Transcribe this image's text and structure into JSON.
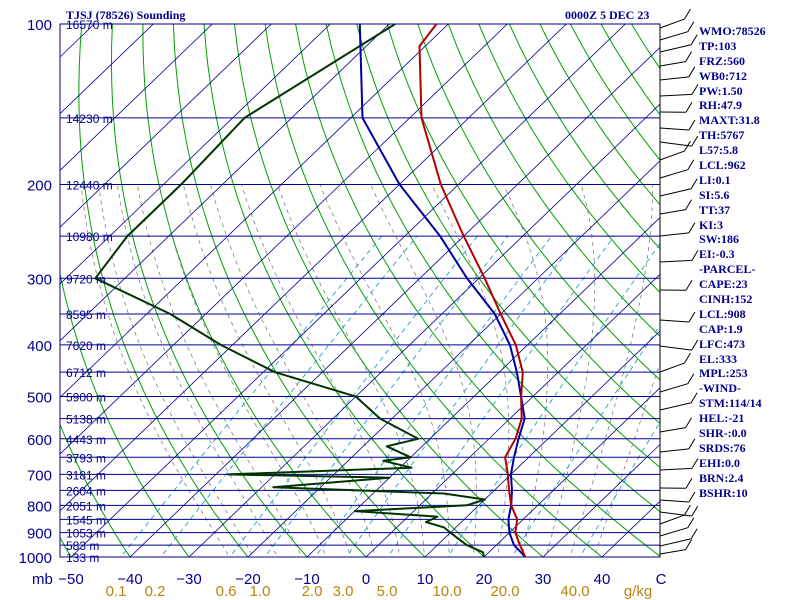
{
  "header": {
    "title": "TJSJ (78526) Sounding",
    "time": "0000Z  5 DEC 23"
  },
  "indices": [
    "WMO:78526",
    "TP:103",
    "FRZ:560",
    "WB0:712",
    "PW:1.50",
    "RH:47.9",
    "MAXT:31.8",
    "TH:5767",
    "L57:5.8",
    "LCL:962",
    "LI:0.1",
    "SI:5.6",
    "TT:37",
    "KI:3",
    "SW:186",
    "EI:-0.3",
    "-PARCEL-",
    "CAPE:23",
    "CINH:152",
    "LCL:908",
    "CAP:1.9",
    "LFC:473",
    "EL:333",
    "MPL:253",
    "-WIND-",
    "STM:114/14",
    "HEL:-21",
    "SHR-:0.0",
    "SRDS:76",
    "EHI:0.0",
    "BRN:2.4",
    "BSHR:10"
  ],
  "chart_data": {
    "type": "line",
    "subtype": "skew-T log-P",
    "colors": {
      "temperature": "#b00000",
      "dewpoint": "#003300",
      "parcel": "#0000a0",
      "isobars": "#00008b",
      "isotherms": "#00008b",
      "dry_adiabats": "#00a000",
      "moist_adiabats": "#808080",
      "mixing_ratio": "#20a0d0"
    },
    "pressure_axis": {
      "unit": "mb",
      "ticks": [
        100,
        200,
        300,
        400,
        500,
        600,
        700,
        800,
        900,
        1000
      ],
      "range": [
        100,
        1000
      ],
      "scale": "log"
    },
    "temperature_axis": {
      "ticks": [
        -50,
        -40,
        -30,
        -20,
        -10,
        0,
        10,
        20,
        30,
        40
      ],
      "range": [
        -50,
        50
      ]
    },
    "mixing_ratio_labels": [
      "0.1",
      "0.2",
      "0.6",
      "1.0",
      "2.0",
      "3.0",
      "5.0",
      "10.0",
      "20.0",
      "40.0"
    ],
    "mixing_ratio_unit": "g/kg",
    "height_labels": [
      {
        "p": 100,
        "text": "16570 m"
      },
      {
        "p": 150,
        "text": "14230 m"
      },
      {
        "p": 200,
        "text": "12440 m"
      },
      {
        "p": 250,
        "text": "10980 m"
      },
      {
        "p": 300,
        "text": "9720 m"
      },
      {
        "p": 350,
        "text": "8595 m"
      },
      {
        "p": 400,
        "text": "7620 m"
      },
      {
        "p": 450,
        "text": "6712 m"
      },
      {
        "p": 500,
        "text": "5900 m"
      },
      {
        "p": 550,
        "text": "5138 m"
      },
      {
        "p": 600,
        "text": "4443 m"
      },
      {
        "p": 650,
        "text": "3793 m"
      },
      {
        "p": 700,
        "text": "3181 m"
      },
      {
        "p": 750,
        "text": "2604 m"
      },
      {
        "p": 800,
        "text": "2051 m"
      },
      {
        "p": 850,
        "text": "1545 m"
      },
      {
        "p": 900,
        "text": "1053 m"
      },
      {
        "p": 950,
        "text": "583 m"
      },
      {
        "p": 1000,
        "text": "133 m"
      }
    ],
    "temperature": [
      [
        100,
        -82
      ],
      [
        110,
        -81
      ],
      [
        150,
        -68
      ],
      [
        200,
        -53
      ],
      [
        250,
        -40
      ],
      [
        300,
        -29
      ],
      [
        350,
        -20
      ],
      [
        400,
        -12
      ],
      [
        450,
        -6
      ],
      [
        500,
        -2
      ],
      [
        550,
        2
      ],
      [
        600,
        4.5
      ],
      [
        650,
        6
      ],
      [
        700,
        9.5
      ],
      [
        750,
        12.5
      ],
      [
        800,
        15.5
      ],
      [
        850,
        19
      ],
      [
        900,
        21
      ],
      [
        950,
        24
      ],
      [
        1000,
        27
      ]
    ],
    "dewpoint": [
      [
        100,
        -89
      ],
      [
        150,
        -98
      ],
      [
        200,
        -97
      ],
      [
        250,
        -97
      ],
      [
        300,
        -95
      ],
      [
        350,
        -76
      ],
      [
        400,
        -62
      ],
      [
        450,
        -48
      ],
      [
        500,
        -30
      ],
      [
        550,
        -22
      ],
      [
        600,
        -12
      ],
      [
        620,
        -16
      ],
      [
        650,
        -10
      ],
      [
        660,
        -14
      ],
      [
        680,
        -8
      ],
      [
        700,
        -38
      ],
      [
        710,
        -10
      ],
      [
        740,
        -28
      ],
      [
        760,
        2
      ],
      [
        780,
        10
      ],
      [
        800,
        8
      ],
      [
        820,
        -10
      ],
      [
        840,
        5
      ],
      [
        860,
        4
      ],
      [
        880,
        8
      ],
      [
        900,
        10
      ],
      [
        920,
        12
      ],
      [
        950,
        15
      ],
      [
        980,
        19
      ],
      [
        1000,
        20
      ]
    ],
    "parcel": [
      [
        100,
        -95
      ],
      [
        150,
        -78
      ],
      [
        200,
        -60
      ],
      [
        250,
        -44
      ],
      [
        300,
        -32
      ],
      [
        350,
        -21
      ],
      [
        400,
        -13
      ],
      [
        450,
        -7
      ],
      [
        500,
        -2
      ],
      [
        550,
        2.5
      ],
      [
        600,
        5
      ],
      [
        650,
        7.5
      ],
      [
        700,
        10
      ],
      [
        750,
        13
      ],
      [
        800,
        15.5
      ],
      [
        850,
        17.5
      ],
      [
        900,
        20
      ],
      [
        950,
        23
      ],
      [
        1000,
        27
      ]
    ]
  }
}
